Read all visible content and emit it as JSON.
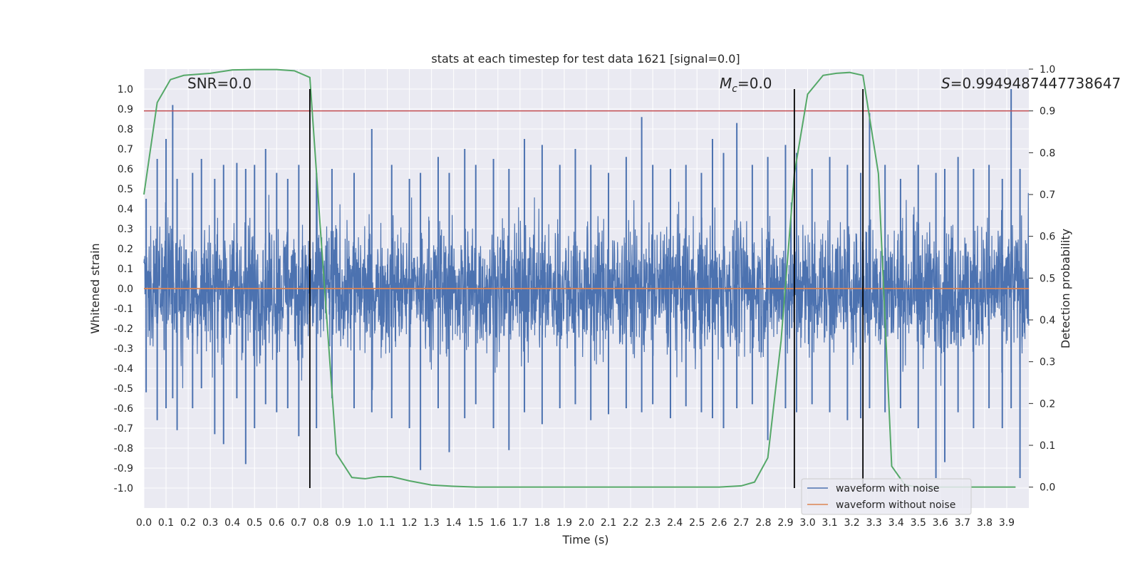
{
  "chart_data": {
    "type": "line",
    "title": "stats at each timestep for test data 1621 [signal=0.0]",
    "xlabel": "Time (s)",
    "ylabel": "Whitened strain",
    "ylabel_right": "Detection probability",
    "xlim": [
      0.0,
      4.0
    ],
    "ylim": [
      -1.1,
      1.1
    ],
    "ylim_right": [
      -0.05,
      1.0
    ],
    "xticks": [
      "0.0",
      "0.1",
      "0.2",
      "0.3",
      "0.4",
      "0.5",
      "0.6",
      "0.7",
      "0.8",
      "0.9",
      "1.0",
      "1.1",
      "1.2",
      "1.3",
      "1.4",
      "1.5",
      "1.6",
      "1.7",
      "1.8",
      "1.9",
      "2.0",
      "2.1",
      "2.2",
      "2.3",
      "2.4",
      "2.5",
      "2.6",
      "2.7",
      "2.8",
      "2.9",
      "3.0",
      "3.1",
      "3.2",
      "3.3",
      "3.4",
      "3.5",
      "3.6",
      "3.7",
      "3.8",
      "3.9"
    ],
    "yticks": [
      "1.0",
      "0.9",
      "0.8",
      "0.7",
      "0.6",
      "0.5",
      "0.4",
      "0.3",
      "0.2",
      "0.1",
      "0.0",
      "-0.1",
      "-0.2",
      "-0.3",
      "-0.4",
      "-0.5",
      "-0.6",
      "-0.7",
      "-0.8",
      "-0.9",
      "-1.0"
    ],
    "yticks_right": [
      "1.0",
      "0.9",
      "0.8",
      "0.7",
      "0.6",
      "0.5",
      "0.4",
      "0.3",
      "0.2",
      "0.1",
      "0.0"
    ],
    "annotations": {
      "snr": "SNR=0.0",
      "mc_symbol": "M",
      "mc_sub": "c",
      "mc_value": "=0.0",
      "s_symbol": "S",
      "s_value": "=0.9949487447738647"
    },
    "threshold_line": {
      "axis": "right",
      "value": 0.9,
      "color": "#c44e52"
    },
    "vertical_lines": [
      0.75,
      2.94,
      3.25
    ],
    "series": [
      {
        "name": "waveform with noise",
        "color": "#4c72b0",
        "spikes": [
          {
            "t": 0.01,
            "max": 0.45,
            "min": -0.52
          },
          {
            "t": 0.06,
            "max": 0.65,
            "min": -0.66
          },
          {
            "t": 0.1,
            "max": 0.75,
            "min": -0.6
          },
          {
            "t": 0.13,
            "max": 0.92,
            "min": -0.55
          },
          {
            "t": 0.15,
            "max": 0.55,
            "min": -0.71
          },
          {
            "t": 0.22,
            "max": 0.58,
            "min": -0.6
          },
          {
            "t": 0.26,
            "max": 0.65,
            "min": -0.5
          },
          {
            "t": 0.32,
            "max": 0.55,
            "min": -0.73
          },
          {
            "t": 0.36,
            "max": 0.62,
            "min": -0.78
          },
          {
            "t": 0.42,
            "max": 0.63,
            "min": -0.55
          },
          {
            "t": 0.46,
            "max": 0.6,
            "min": -0.88
          },
          {
            "t": 0.5,
            "max": 0.62,
            "min": -0.7
          },
          {
            "t": 0.55,
            "max": 0.7,
            "min": -0.58
          },
          {
            "t": 0.6,
            "max": 0.58,
            "min": -0.62
          },
          {
            "t": 0.65,
            "max": 0.55,
            "min": -0.6
          },
          {
            "t": 0.7,
            "max": 0.62,
            "min": -0.74
          },
          {
            "t": 0.78,
            "max": 0.58,
            "min": -0.7
          },
          {
            "t": 0.85,
            "max": 0.6,
            "min": -0.55
          },
          {
            "t": 0.95,
            "max": 0.58,
            "min": -0.6
          },
          {
            "t": 1.03,
            "max": 0.8,
            "min": -0.62
          },
          {
            "t": 1.12,
            "max": 0.62,
            "min": -0.65
          },
          {
            "t": 1.2,
            "max": 0.55,
            "min": -0.7
          },
          {
            "t": 1.25,
            "max": 0.58,
            "min": -0.91
          },
          {
            "t": 1.33,
            "max": 0.66,
            "min": -0.6
          },
          {
            "t": 1.38,
            "max": 0.58,
            "min": -0.82
          },
          {
            "t": 1.45,
            "max": 0.7,
            "min": -0.65
          },
          {
            "t": 1.5,
            "max": 0.62,
            "min": -0.58
          },
          {
            "t": 1.58,
            "max": 0.65,
            "min": -0.7
          },
          {
            "t": 1.65,
            "max": 0.6,
            "min": -0.81
          },
          {
            "t": 1.72,
            "max": 0.75,
            "min": -0.62
          },
          {
            "t": 1.8,
            "max": 0.72,
            "min": -0.68
          },
          {
            "t": 1.88,
            "max": 0.62,
            "min": -0.6
          },
          {
            "t": 1.95,
            "max": 0.7,
            "min": -0.58
          },
          {
            "t": 2.02,
            "max": 0.62,
            "min": -0.66
          },
          {
            "t": 2.1,
            "max": 0.58,
            "min": -0.63
          },
          {
            "t": 2.18,
            "max": 0.66,
            "min": -0.6
          },
          {
            "t": 2.25,
            "max": 0.86,
            "min": -0.62
          },
          {
            "t": 2.3,
            "max": 0.62,
            "min": -0.58
          },
          {
            "t": 2.38,
            "max": 0.6,
            "min": -0.65
          },
          {
            "t": 2.45,
            "max": 0.62,
            "min": -0.59
          },
          {
            "t": 2.52,
            "max": 0.58,
            "min": -0.62
          },
          {
            "t": 2.57,
            "max": 0.75,
            "min": -0.65
          },
          {
            "t": 2.62,
            "max": 0.68,
            "min": -0.7
          },
          {
            "t": 2.68,
            "max": 0.83,
            "min": -0.6
          },
          {
            "t": 2.75,
            "max": 0.62,
            "min": -0.58
          },
          {
            "t": 2.82,
            "max": 0.66,
            "min": -0.76
          },
          {
            "t": 2.9,
            "max": 0.72,
            "min": -0.6
          },
          {
            "t": 2.95,
            "max": 0.68,
            "min": -0.62
          },
          {
            "t": 3.02,
            "max": 0.6,
            "min": -0.58
          },
          {
            "t": 3.1,
            "max": 0.66,
            "min": -0.62
          },
          {
            "t": 3.18,
            "max": 0.62,
            "min": -0.66
          },
          {
            "t": 3.24,
            "max": 0.58,
            "min": -0.65
          },
          {
            "t": 3.28,
            "max": 0.88,
            "min": -0.6
          },
          {
            "t": 3.35,
            "max": 0.62,
            "min": -0.62
          },
          {
            "t": 3.42,
            "max": 0.55,
            "min": -0.6
          },
          {
            "t": 3.5,
            "max": 0.62,
            "min": -0.7
          },
          {
            "t": 3.58,
            "max": 0.58,
            "min": -0.95
          },
          {
            "t": 3.62,
            "max": 0.6,
            "min": -0.87
          },
          {
            "t": 3.68,
            "max": 0.66,
            "min": -0.62
          },
          {
            "t": 3.75,
            "max": 0.6,
            "min": -0.7
          },
          {
            "t": 3.82,
            "max": 0.62,
            "min": -0.6
          },
          {
            "t": 3.88,
            "max": 0.55,
            "min": -0.7
          },
          {
            "t": 3.92,
            "max": 1.0,
            "min": -0.6
          },
          {
            "t": 3.96,
            "max": 0.6,
            "min": -0.95
          }
        ]
      },
      {
        "name": "waveform without noise",
        "color": "#dd8452",
        "x": [
          0.0,
          4.0
        ],
        "y": [
          0.0,
          0.0
        ]
      },
      {
        "name": "detection probability",
        "axis": "right",
        "color": "#55a868",
        "x": [
          0.0,
          0.06,
          0.12,
          0.18,
          0.3,
          0.4,
          0.5,
          0.6,
          0.68,
          0.75,
          0.8,
          0.87,
          0.94,
          1.0,
          1.06,
          1.12,
          1.2,
          1.3,
          1.4,
          1.5,
          1.7,
          1.8,
          2.0,
          2.2,
          2.4,
          2.6,
          2.7,
          2.76,
          2.82,
          2.88,
          2.94,
          3.0,
          3.07,
          3.13,
          3.19,
          3.25,
          3.32,
          3.38,
          3.44,
          3.5,
          3.6,
          3.8,
          3.94
        ],
        "y": [
          0.7,
          0.92,
          0.975,
          0.985,
          0.99,
          0.998,
          0.999,
          0.999,
          0.996,
          0.98,
          0.6,
          0.08,
          0.023,
          0.02,
          0.025,
          0.025,
          0.015,
          0.005,
          0.002,
          0.0,
          0.0,
          0.0,
          0.0,
          0.0,
          0.0,
          0.0,
          0.003,
          0.012,
          0.07,
          0.35,
          0.75,
          0.94,
          0.985,
          0.99,
          0.992,
          0.985,
          0.75,
          0.05,
          0.005,
          0.0,
          0.0,
          0.0,
          0.0
        ]
      }
    ],
    "legend": {
      "placement": "bottom-right",
      "entries": [
        "waveform with noise",
        "waveform without noise"
      ]
    }
  }
}
